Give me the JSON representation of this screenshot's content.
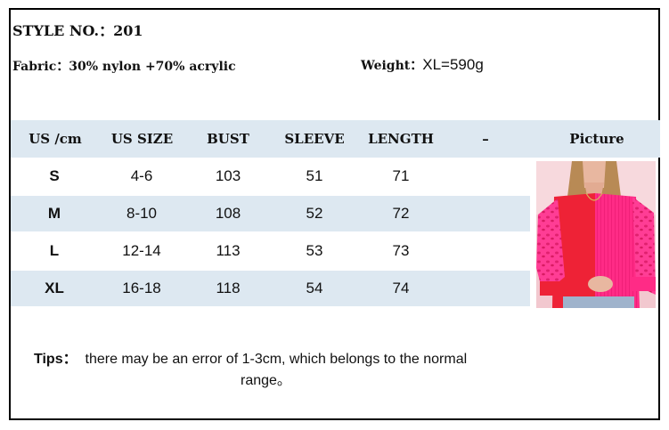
{
  "header": {
    "style_no": "STYLE NO.：201",
    "fabric_label": "Fabric：",
    "fabric_value": "30% nylon +70% acrylic",
    "weight_label": "Weight：",
    "weight_value": "XL=590g"
  },
  "table": {
    "columns": [
      "US /cm",
      "US SIZE",
      "BUST",
      "SLEEVE",
      "LENGTH",
      "–",
      "Picture"
    ],
    "rows": [
      [
        "S",
        "4-6",
        "103",
        "51",
        "71"
      ],
      [
        "M",
        "8-10",
        "108",
        "52",
        "72"
      ],
      [
        "L",
        "12-14",
        "113",
        "53",
        "73"
      ],
      [
        "XL",
        "16-18",
        "118",
        "54",
        "74"
      ]
    ]
  },
  "tips": {
    "label": "Tips：",
    "line1": "there may be an error of 1-3cm, which belongs to the normal",
    "line2": "range。"
  },
  "colors": {
    "header_band": "#dde8f1",
    "sweater_pink": "#ff2e8a",
    "sweater_red": "#ee2236"
  }
}
